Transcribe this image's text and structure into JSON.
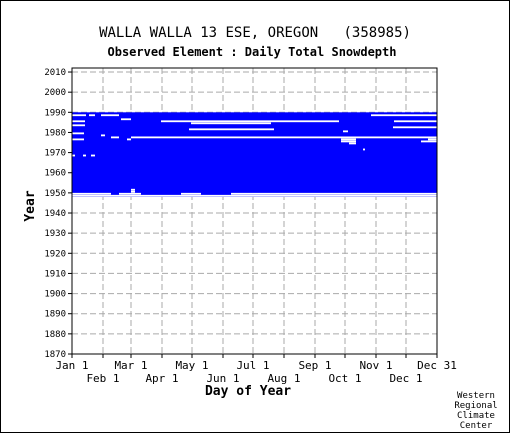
{
  "chart_data": {
    "type": "heatmap",
    "title": "WALLA WALLA 13 ESE, OREGON   (358985)",
    "subtitle": "Observed Element : Daily Total Snowdepth",
    "xlabel": "Day of Year",
    "ylabel": "Year",
    "ylim": [
      1870,
      2012
    ],
    "y_ticks": [
      1870,
      1880,
      1890,
      1900,
      1910,
      1920,
      1930,
      1940,
      1950,
      1960,
      1970,
      1980,
      1990,
      2000,
      2010
    ],
    "x_ticks_upper": [
      {
        "label": "Jan 1",
        "day": 1
      },
      {
        "label": "Mar 1",
        "day": 60
      },
      {
        "label": "May 1",
        "day": 121
      },
      {
        "label": "Jul 1",
        "day": 182
      },
      {
        "label": "Sep 1",
        "day": 244
      },
      {
        "label": "Nov 1",
        "day": 305
      },
      {
        "label": "Dec 31",
        "day": 366
      }
    ],
    "x_ticks_lower": [
      {
        "label": "Feb 1",
        "day": 32
      },
      {
        "label": "Apr 1",
        "day": 91
      },
      {
        "label": "Jun 1",
        "day": 152
      },
      {
        "label": "Aug 1",
        "day": 213
      },
      {
        "label": "Oct 1",
        "day": 274
      },
      {
        "label": "Dec 1",
        "day": 335
      }
    ],
    "grid": true,
    "data_color": "#0000ff",
    "data_extent": {
      "year_start": 1948,
      "year_end": 1989,
      "day_start": 1,
      "day_end": 366
    },
    "missing_segments": [
      {
        "year": 1988,
        "day_start": 1,
        "day_end": 15
      },
      {
        "year": 1988,
        "day_start": 18,
        "day_end": 24
      },
      {
        "year": 1988,
        "day_start": 30,
        "day_end": 48
      },
      {
        "year": 1988,
        "day_start": 300,
        "day_end": 366
      },
      {
        "year": 1986,
        "day_start": 50,
        "day_end": 60
      },
      {
        "year": 1985,
        "day_start": 1,
        "day_end": 14
      },
      {
        "year": 1985,
        "day_start": 90,
        "day_end": 268
      },
      {
        "year": 1985,
        "day_start": 323,
        "day_end": 366
      },
      {
        "year": 1984,
        "day_start": 120,
        "day_end": 200
      },
      {
        "year": 1983,
        "day_start": 1,
        "day_end": 14
      },
      {
        "year": 1982,
        "day_start": 322,
        "day_end": 366
      },
      {
        "year": 1981,
        "day_start": 118,
        "day_end": 203
      },
      {
        "year": 1980,
        "day_start": 272,
        "day_end": 277
      },
      {
        "year": 1979,
        "day_start": 1,
        "day_end": 13
      },
      {
        "year": 1978,
        "day_start": 30,
        "day_end": 34
      },
      {
        "year": 1977,
        "day_start": 40,
        "day_end": 48
      },
      {
        "year": 1977,
        "day_start": 60,
        "day_end": 366
      },
      {
        "year": 1976,
        "day_start": 1,
        "day_end": 13
      },
      {
        "year": 1976,
        "day_start": 56,
        "day_end": 60
      },
      {
        "year": 1976,
        "day_start": 270,
        "day_end": 285
      },
      {
        "year": 1976,
        "day_start": 357,
        "day_end": 366
      },
      {
        "year": 1975,
        "day_start": 270,
        "day_end": 285
      },
      {
        "year": 1975,
        "day_start": 350,
        "day_end": 366
      },
      {
        "year": 1974,
        "day_start": 278,
        "day_end": 285
      },
      {
        "year": 1971,
        "day_start": 292,
        "day_end": 294
      },
      {
        "year": 1968,
        "day_start": 1,
        "day_end": 4
      },
      {
        "year": 1968,
        "day_start": 12,
        "day_end": 15
      },
      {
        "year": 1968,
        "day_start": 20,
        "day_end": 24
      },
      {
        "year": 1951,
        "day_start": 60,
        "day_end": 64
      },
      {
        "year": 1950,
        "day_start": 60,
        "day_end": 64
      },
      {
        "year": 1949,
        "day_start": 1,
        "day_end": 40
      },
      {
        "year": 1949,
        "day_start": 48,
        "day_end": 70
      },
      {
        "year": 1949,
        "day_start": 110,
        "day_end": 130
      },
      {
        "year": 1949,
        "day_start": 160,
        "day_end": 366
      },
      {
        "year": 1948,
        "day_start": 1,
        "day_end": 366
      }
    ]
  },
  "credit": [
    "Western",
    "Regional",
    "Climate",
    "Center"
  ]
}
